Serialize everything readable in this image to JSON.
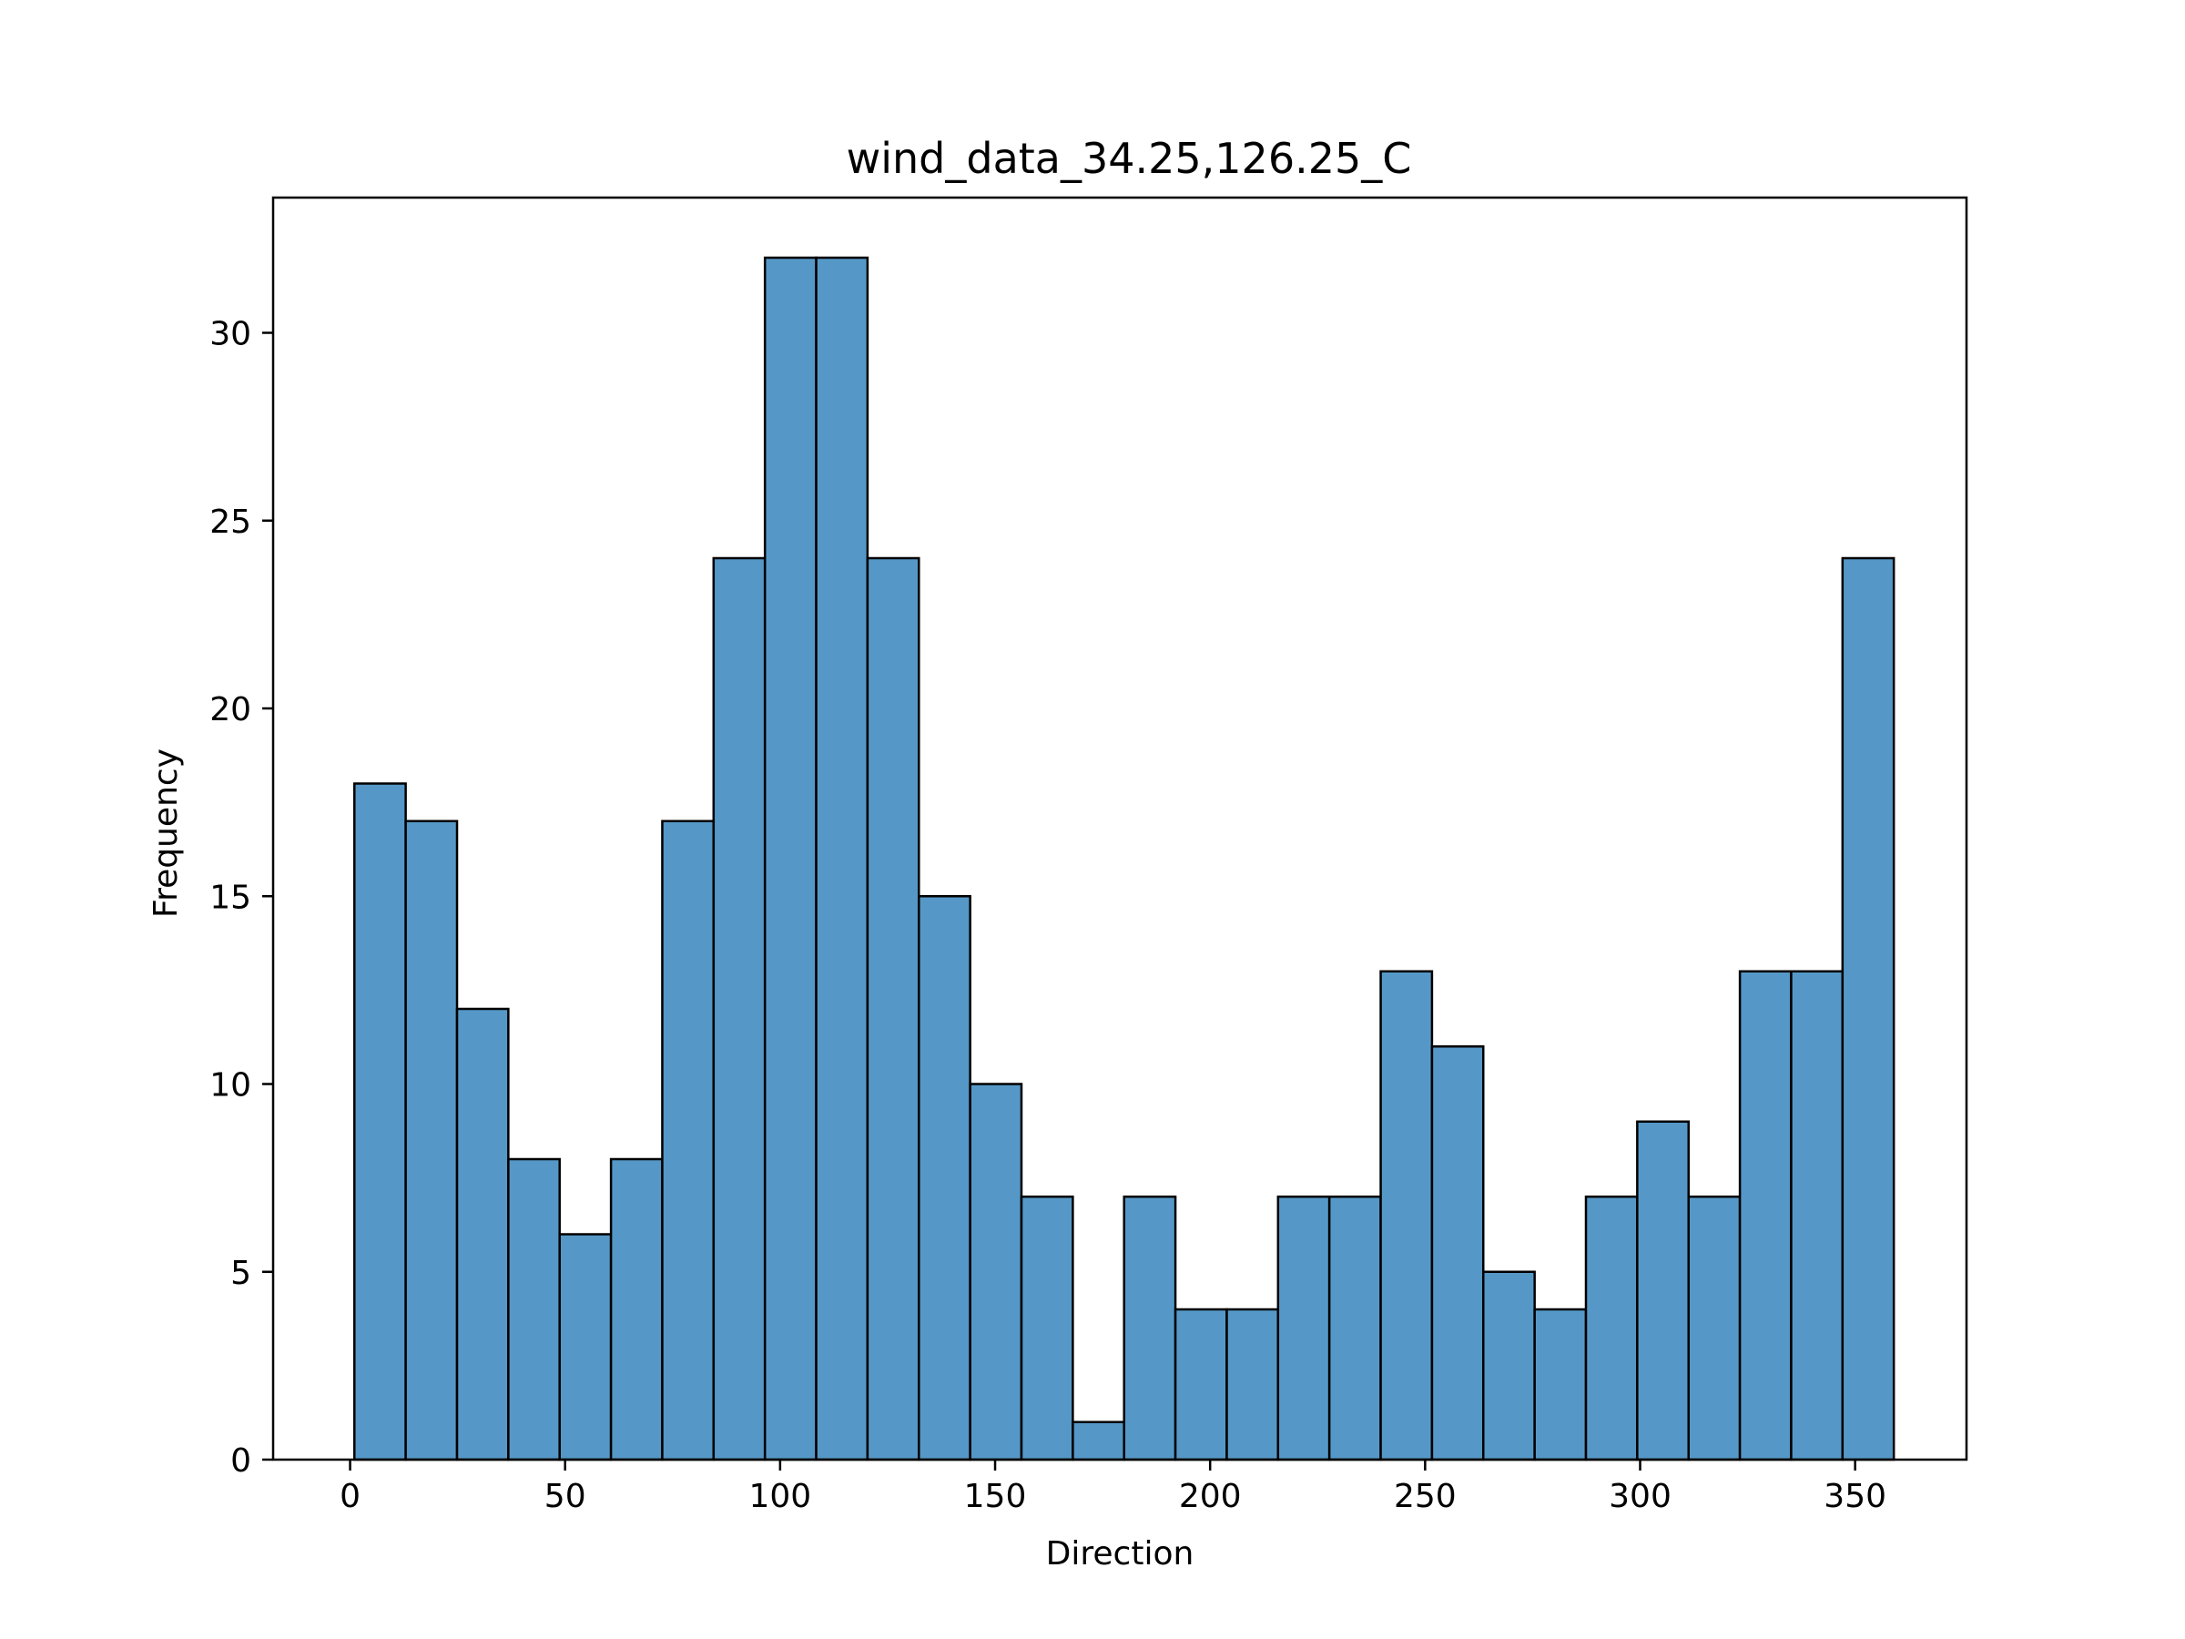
{
  "chart_data": {
    "type": "bar",
    "title": "wind_data_34.25,126.25_C",
    "xlabel": "Direction",
    "ylabel": "Frequency",
    "xlim": [
      -17.9,
      375.9
    ],
    "ylim": [
      0,
      33.6
    ],
    "grid": false,
    "bar_color": "#5598c7",
    "edge_color": "#000000",
    "bins": [
      {
        "start": 1.0,
        "end": 12.93,
        "count": 18
      },
      {
        "start": 12.93,
        "end": 24.87,
        "count": 17
      },
      {
        "start": 24.87,
        "end": 36.8,
        "count": 12
      },
      {
        "start": 36.8,
        "end": 48.73,
        "count": 8
      },
      {
        "start": 48.73,
        "end": 60.67,
        "count": 6
      },
      {
        "start": 60.67,
        "end": 72.6,
        "count": 8
      },
      {
        "start": 72.6,
        "end": 84.53,
        "count": 17
      },
      {
        "start": 84.53,
        "end": 96.47,
        "count": 24
      },
      {
        "start": 96.47,
        "end": 108.4,
        "count": 32
      },
      {
        "start": 108.4,
        "end": 120.33,
        "count": 32
      },
      {
        "start": 120.33,
        "end": 132.27,
        "count": 24
      },
      {
        "start": 132.27,
        "end": 144.2,
        "count": 15
      },
      {
        "start": 144.2,
        "end": 156.13,
        "count": 10
      },
      {
        "start": 156.13,
        "end": 168.07,
        "count": 7
      },
      {
        "start": 168.07,
        "end": 180.0,
        "count": 1
      },
      {
        "start": 180.0,
        "end": 191.93,
        "count": 7
      },
      {
        "start": 191.93,
        "end": 203.87,
        "count": 4
      },
      {
        "start": 203.87,
        "end": 215.8,
        "count": 4
      },
      {
        "start": 215.8,
        "end": 227.73,
        "count": 7
      },
      {
        "start": 227.73,
        "end": 239.67,
        "count": 7
      },
      {
        "start": 239.67,
        "end": 251.6,
        "count": 13
      },
      {
        "start": 251.6,
        "end": 263.53,
        "count": 11
      },
      {
        "start": 263.53,
        "end": 275.47,
        "count": 5
      },
      {
        "start": 275.47,
        "end": 287.4,
        "count": 4
      },
      {
        "start": 287.4,
        "end": 299.33,
        "count": 7
      },
      {
        "start": 299.33,
        "end": 311.27,
        "count": 9
      },
      {
        "start": 311.27,
        "end": 323.2,
        "count": 7
      },
      {
        "start": 323.2,
        "end": 335.13,
        "count": 13
      },
      {
        "start": 335.13,
        "end": 347.07,
        "count": 13
      },
      {
        "start": 347.07,
        "end": 359.0,
        "count": 24
      }
    ],
    "xticks": [
      0,
      50,
      100,
      150,
      200,
      250,
      300,
      350
    ],
    "xtick_labels": [
      "0",
      "50",
      "100",
      "150",
      "200",
      "250",
      "300",
      "350"
    ],
    "yticks": [
      0,
      5,
      10,
      15,
      20,
      25,
      30
    ],
    "ytick_labels": [
      "0",
      "5",
      "10",
      "15",
      "20",
      "25",
      "30"
    ]
  }
}
